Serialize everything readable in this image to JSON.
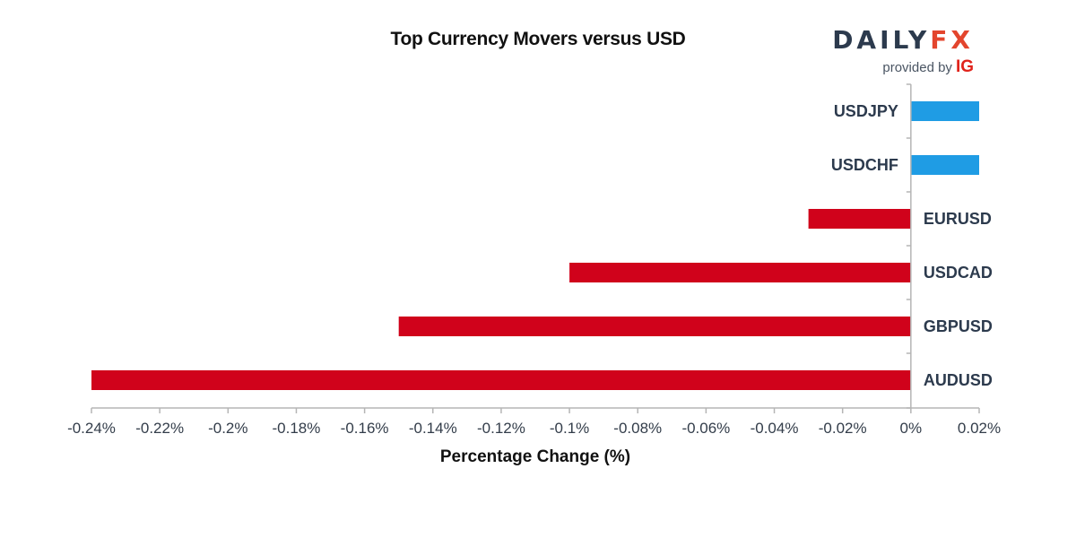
{
  "title": "Top Currency Movers versus USD",
  "logo": {
    "brand_main": "DAILY",
    "brand_accent": "FX",
    "provided_by": "provided by",
    "ig": "IG"
  },
  "colors": {
    "positive": "#1f9ce4",
    "negative": "#d0021b",
    "axis": "#b5b5b5",
    "text": "#2c3a4d"
  },
  "chart_data": {
    "type": "bar",
    "orientation": "horizontal",
    "title": "Top Currency Movers versus USD",
    "xlabel": "Percentage Change (%)",
    "ylabel": "",
    "categories": [
      "USDJPY",
      "USDCHF",
      "EURUSD",
      "USDCAD",
      "GBPUSD",
      "AUDUSD"
    ],
    "values": [
      0.02,
      0.02,
      -0.03,
      -0.1,
      -0.15,
      -0.24
    ],
    "xlim": [
      -0.24,
      0.02
    ],
    "ticks": [
      -0.24,
      -0.22,
      -0.2,
      -0.18,
      -0.16,
      -0.14,
      -0.12,
      -0.1,
      -0.08,
      -0.06,
      -0.04,
      -0.02,
      0,
      0.02
    ],
    "tick_labels": [
      "-0.24%",
      "-0.22%",
      "-0.2%",
      "-0.18%",
      "-0.16%",
      "-0.14%",
      "-0.12%",
      "-0.1%",
      "-0.08%",
      "-0.06%",
      "-0.04%",
      "-0.02%",
      "0%",
      "0.02%"
    ],
    "grid": false,
    "legend": "none"
  }
}
